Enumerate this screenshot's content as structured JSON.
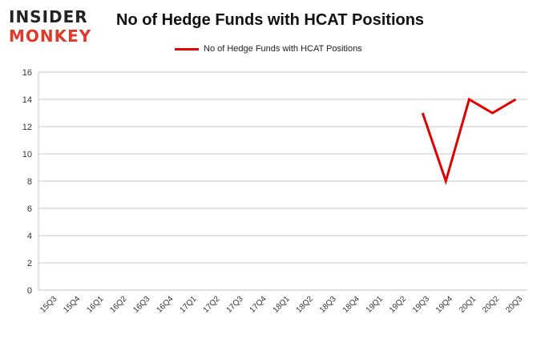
{
  "logo": {
    "line1": "INSIDER",
    "line2": "MONKEY"
  },
  "chart_data": {
    "type": "line",
    "title": "No of Hedge Funds with HCAT Positions",
    "xlabel": "",
    "ylabel": "",
    "categories": [
      "15Q3",
      "15Q4",
      "16Q1",
      "16Q2",
      "16Q3",
      "16Q4",
      "17Q1",
      "17Q2",
      "17Q3",
      "17Q4",
      "18Q1",
      "18Q2",
      "18Q3",
      "18Q4",
      "19Q1",
      "19Q2",
      "19Q3",
      "19Q4",
      "20Q1",
      "20Q2",
      "20Q3"
    ],
    "series": [
      {
        "name": "No of Hedge Funds with HCAT Positions",
        "color": "#e00000",
        "values": [
          null,
          null,
          null,
          null,
          null,
          null,
          null,
          null,
          null,
          null,
          null,
          null,
          null,
          null,
          null,
          null,
          13,
          8,
          14,
          13,
          14
        ]
      }
    ],
    "ylim": [
      0,
      16
    ],
    "yticks": [
      0,
      2,
      4,
      6,
      8,
      10,
      12,
      14,
      16
    ],
    "grid": true,
    "legend_position": "top-center"
  }
}
